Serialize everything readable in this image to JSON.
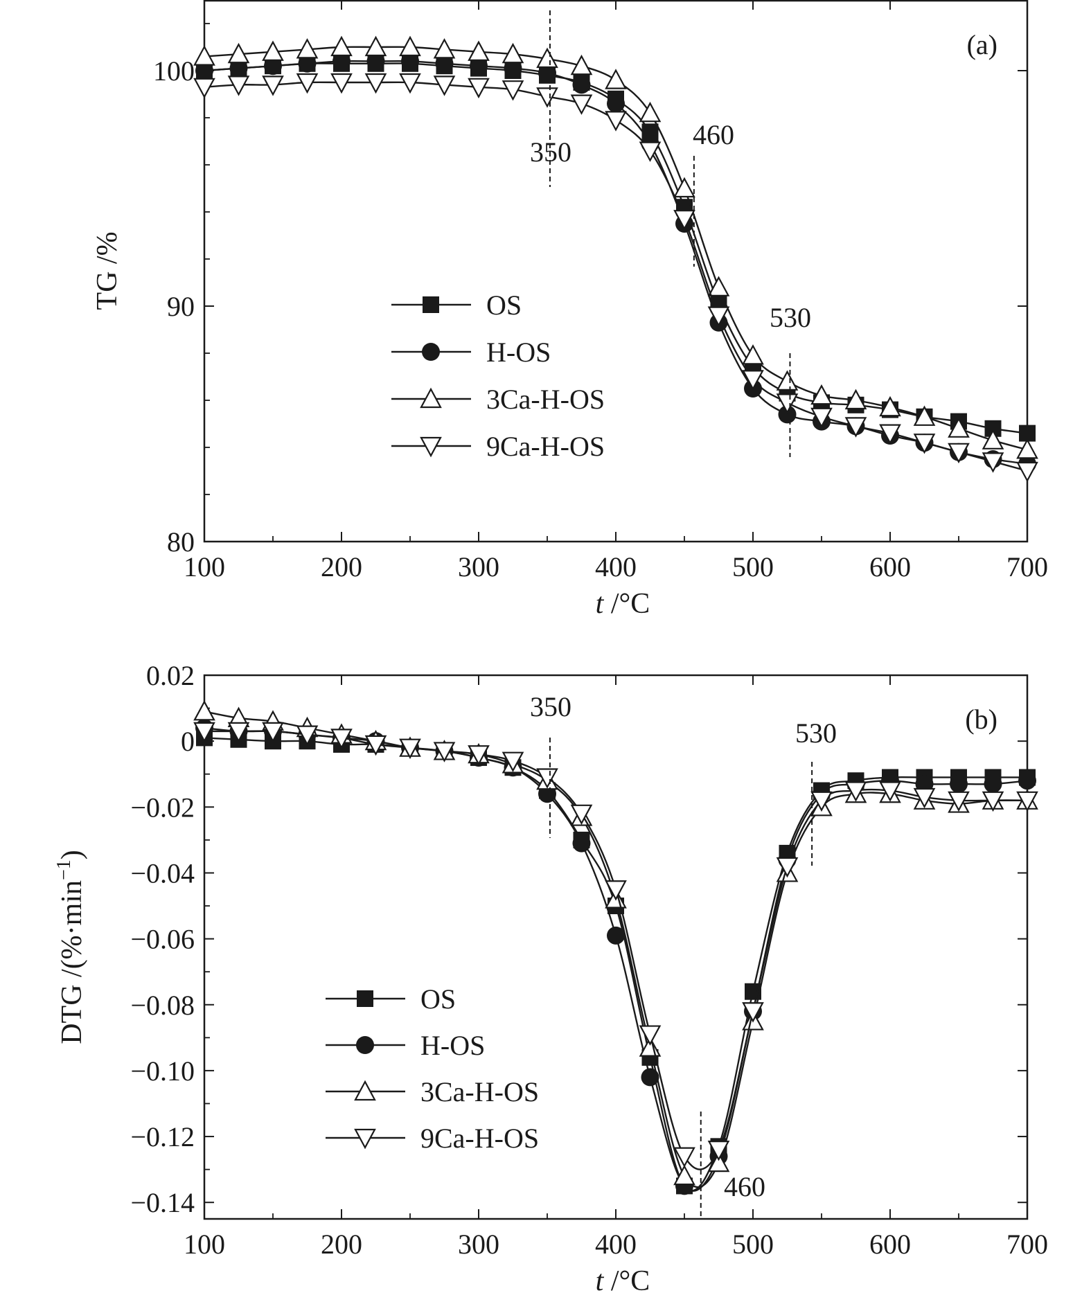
{
  "chart_data": [
    {
      "type": "line",
      "panel_label": "(a)",
      "xlabel_italic": "t",
      "xlabel_rest": " /°C",
      "ylabel": "TG /%",
      "xlim": [
        100,
        700
      ],
      "ylim": [
        80,
        103
      ],
      "xticks": [
        100,
        200,
        300,
        400,
        500,
        600,
        700
      ],
      "yticks": [
        80,
        90,
        100
      ],
      "ytick_labels": [
        "80",
        "90",
        "100"
      ],
      "grid": false,
      "legend_position": "center-left",
      "annotations": [
        {
          "text": "350",
          "x": 352
        },
        {
          "text": "460",
          "x": 457
        },
        {
          "text": "530",
          "x": 527
        }
      ],
      "marker_x": [
        100,
        125,
        150,
        175,
        200,
        225,
        250,
        275,
        300,
        325,
        350,
        375,
        400,
        425,
        450,
        475,
        500,
        525,
        550,
        575,
        600,
        625,
        650,
        675,
        700
      ],
      "series": [
        {
          "name": "OS",
          "marker": "square-filled",
          "values": [
            100.0,
            100.1,
            100.2,
            100.3,
            100.3,
            100.3,
            100.3,
            100.2,
            100.1,
            100.0,
            99.8,
            99.5,
            98.8,
            97.4,
            94.2,
            90.1,
            87.4,
            86.3,
            85.9,
            85.8,
            85.6,
            85.3,
            85.1,
            84.8,
            84.6
          ]
        },
        {
          "name": "H-OS",
          "marker": "circle-filled",
          "values": [
            100.0,
            100.1,
            100.2,
            100.3,
            100.4,
            100.4,
            100.4,
            100.3,
            100.2,
            100.1,
            99.9,
            99.4,
            98.6,
            96.9,
            93.5,
            89.3,
            86.5,
            85.4,
            85.1,
            84.9,
            84.5,
            84.2,
            83.8,
            83.5,
            83.3
          ]
        },
        {
          "name": "3Ca-H-OS",
          "marker": "triangle-up-open",
          "values": [
            100.6,
            100.7,
            100.8,
            100.9,
            101.0,
            101.0,
            101.0,
            100.9,
            100.8,
            100.7,
            100.5,
            100.2,
            99.6,
            98.2,
            95.0,
            90.8,
            87.9,
            86.8,
            86.2,
            86.0,
            85.7,
            85.3,
            84.8,
            84.3,
            83.9
          ]
        },
        {
          "name": "9Ca-H-OS",
          "marker": "triangle-down-open",
          "values": [
            99.3,
            99.4,
            99.4,
            99.5,
            99.5,
            99.5,
            99.5,
            99.4,
            99.3,
            99.2,
            98.9,
            98.6,
            97.9,
            96.6,
            93.7,
            89.6,
            86.9,
            85.9,
            85.3,
            84.9,
            84.6,
            84.2,
            83.8,
            83.4,
            83.0
          ]
        }
      ]
    },
    {
      "type": "line",
      "panel_label": "(b)",
      "xlabel_italic": "t",
      "xlabel_rest": " /°C",
      "ylabel_main": "DTG /(%·min",
      "ylabel_sup": "−1",
      "ylabel_close": ")",
      "xlim": [
        100,
        700
      ],
      "ylim": [
        -0.145,
        0.02
      ],
      "xticks": [
        100,
        200,
        300,
        400,
        500,
        600,
        700
      ],
      "yticks": [
        0.02,
        0,
        -0.02,
        -0.04,
        -0.06,
        -0.08,
        -0.1,
        -0.12,
        -0.14
      ],
      "ytick_labels": [
        "0.02",
        "0",
        "−0.02",
        "−0.04",
        "−0.06",
        "−0.08",
        "−0.10",
        "−0.12",
        "−0.14"
      ],
      "grid": false,
      "legend_position": "bottom-left",
      "annotations": [
        {
          "text": "350",
          "x": 352
        },
        {
          "text": "530",
          "x": 543
        },
        {
          "text": "460",
          "x": 462
        }
      ],
      "marker_x": [
        100,
        125,
        150,
        175,
        200,
        225,
        250,
        275,
        300,
        325,
        350,
        375,
        400,
        425,
        450,
        475,
        500,
        525,
        550,
        575,
        600,
        625,
        650,
        675,
        700
      ],
      "series": [
        {
          "name": "OS",
          "marker": "square-filled",
          "values": [
            0.001,
            0.0005,
            0.0,
            0.0,
            -0.001,
            -0.001,
            -0.002,
            -0.003,
            -0.005,
            -0.008,
            -0.015,
            -0.03,
            -0.05,
            -0.096,
            -0.135,
            -0.123,
            -0.076,
            -0.034,
            -0.015,
            -0.012,
            -0.011,
            -0.011,
            -0.011,
            -0.011,
            -0.011
          ]
        },
        {
          "name": "H-OS",
          "marker": "circle-filled",
          "values": [
            0.004,
            0.003,
            0.003,
            0.002,
            0.001,
            0.0,
            -0.002,
            -0.003,
            -0.005,
            -0.008,
            -0.016,
            -0.031,
            -0.059,
            -0.102,
            -0.135,
            -0.126,
            -0.082,
            -0.036,
            -0.016,
            -0.013,
            -0.012,
            -0.013,
            -0.013,
            -0.013,
            -0.012
          ]
        },
        {
          "name": "3Ca-H-OS",
          "marker": "triangle-up-open",
          "values": [
            0.009,
            0.007,
            0.006,
            0.004,
            0.002,
            0.0,
            -0.002,
            -0.003,
            -0.004,
            -0.007,
            -0.012,
            -0.023,
            -0.048,
            -0.093,
            -0.132,
            -0.128,
            -0.085,
            -0.04,
            -0.02,
            -0.016,
            -0.016,
            -0.018,
            -0.019,
            -0.018,
            -0.018
          ]
        },
        {
          "name": "9Ca-H-OS",
          "marker": "triangle-down-open",
          "values": [
            0.003,
            0.003,
            0.003,
            0.002,
            0.001,
            -0.001,
            -0.002,
            -0.003,
            -0.004,
            -0.006,
            -0.011,
            -0.022,
            -0.045,
            -0.089,
            -0.126,
            -0.124,
            -0.082,
            -0.038,
            -0.018,
            -0.015,
            -0.015,
            -0.017,
            -0.018,
            -0.018,
            -0.018
          ]
        }
      ]
    }
  ]
}
